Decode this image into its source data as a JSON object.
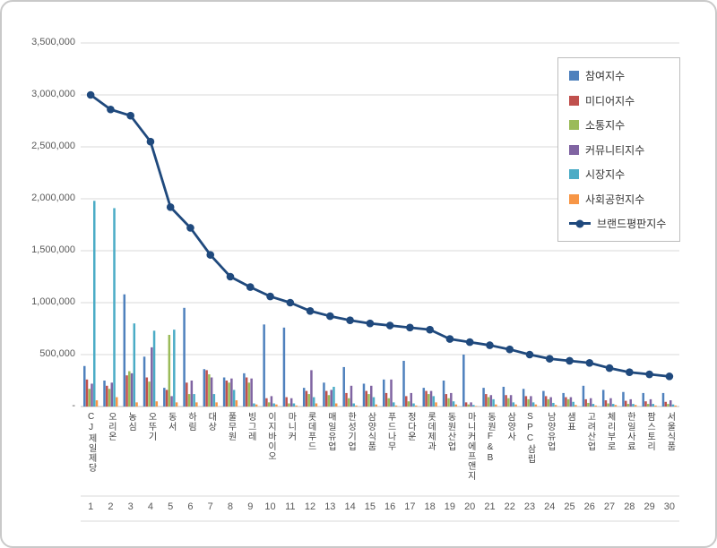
{
  "chart": {
    "accent_line_color": "#1F497D",
    "gridline_color": "#D9D9D9",
    "axis_line_color": "#BFBFBF",
    "background_color": "#FFFFFF"
  },
  "chart_data": {
    "type": "bar",
    "subtype": "grouped-bars-with-line-overlay",
    "title": "",
    "xlabel": "",
    "ylabel": "",
    "ylim": [
      0,
      3500000
    ],
    "ytick_interval": 500000,
    "ytick_labels": [
      "-",
      "500,000",
      "1,000,000",
      "1,500,000",
      "2,000,000",
      "2,500,000",
      "3,000,000",
      "3,500,000"
    ],
    "grid": true,
    "legend_position": "top-right",
    "categories": [
      "CJ제일제당",
      "오리온",
      "농심",
      "오뚜기",
      "동서",
      "하림",
      "대상",
      "풀무원",
      "빙그레",
      "이지바이오",
      "마니커",
      "롯데푸드",
      "매일유업",
      "한성기업",
      "삼양식품",
      "푸드나무",
      "정다운",
      "롯데제과",
      "동원산업",
      "마니커에프앤지",
      "동원F&B",
      "삼양사",
      "SPC삼립",
      "남양유업",
      "샘표",
      "고려산업",
      "체리부로",
      "한일사료",
      "팜스토리",
      "서울식품"
    ],
    "rank_labels": [
      "1",
      "2",
      "3",
      "4",
      "5",
      "6",
      "7",
      "8",
      "9",
      "10",
      "11",
      "12",
      "13",
      "14",
      "15",
      "16",
      "17",
      "18",
      "19",
      "20",
      "21",
      "22",
      "23",
      "24",
      "25",
      "26",
      "27",
      "28",
      "29",
      "30"
    ],
    "series": [
      {
        "name": "참여지수",
        "type": "bar",
        "color": "#4F81BD",
        "values": [
          390000,
          250000,
          1080000,
          480000,
          180000,
          950000,
          360000,
          280000,
          320000,
          790000,
          760000,
          180000,
          230000,
          380000,
          220000,
          260000,
          440000,
          180000,
          250000,
          500000,
          180000,
          190000,
          170000,
          150000,
          130000,
          200000,
          160000,
          140000,
          130000,
          130000
        ]
      },
      {
        "name": "미디어지수",
        "type": "bar",
        "color": "#C0504D",
        "values": [
          260000,
          200000,
          300000,
          280000,
          160000,
          230000,
          350000,
          250000,
          280000,
          80000,
          90000,
          150000,
          150000,
          130000,
          150000,
          130000,
          100000,
          150000,
          120000,
          40000,
          120000,
          110000,
          100000,
          100000,
          90000,
          70000,
          60000,
          55000,
          50000,
          45000
        ]
      },
      {
        "name": "소통지수",
        "type": "bar",
        "color": "#9BBB59",
        "values": [
          170000,
          170000,
          340000,
          240000,
          690000,
          120000,
          310000,
          230000,
          230000,
          40000,
          30000,
          120000,
          110000,
          80000,
          120000,
          80000,
          50000,
          120000,
          80000,
          20000,
          90000,
          80000,
          70000,
          70000,
          70000,
          35000,
          30000,
          25000,
          25000,
          25000
        ]
      },
      {
        "name": "커뮤니티지수",
        "type": "bar",
        "color": "#8064A2",
        "values": [
          220000,
          230000,
          320000,
          570000,
          100000,
          250000,
          280000,
          270000,
          270000,
          100000,
          80000,
          350000,
          160000,
          200000,
          200000,
          260000,
          130000,
          150000,
          130000,
          40000,
          110000,
          110000,
          100000,
          90000,
          90000,
          80000,
          80000,
          70000,
          70000,
          60000
        ]
      },
      {
        "name": "시장지수",
        "type": "bar",
        "color": "#4BACC6",
        "values": [
          1980000,
          1910000,
          800000,
          730000,
          740000,
          120000,
          120000,
          160000,
          30000,
          30000,
          30000,
          90000,
          190000,
          30000,
          90000,
          40000,
          30000,
          100000,
          50000,
          15000,
          70000,
          40000,
          40000,
          35000,
          45000,
          25000,
          25000,
          25000,
          25000,
          20000
        ]
      },
      {
        "name": "사회공헌지수",
        "type": "bar",
        "color": "#F79646",
        "values": [
          60000,
          90000,
          40000,
          50000,
          40000,
          40000,
          40000,
          60000,
          20000,
          20000,
          10000,
          30000,
          30000,
          10000,
          20000,
          10000,
          10000,
          40000,
          20000,
          5000,
          20000,
          20000,
          20000,
          15000,
          15000,
          10000,
          15000,
          15000,
          10000,
          10000
        ]
      },
      {
        "name": "브랜드평판지수",
        "type": "line",
        "color": "#1F497D",
        "values": [
          3000000,
          2860000,
          2800000,
          2550000,
          1920000,
          1720000,
          1460000,
          1250000,
          1150000,
          1060000,
          1000000,
          920000,
          870000,
          830000,
          800000,
          780000,
          760000,
          740000,
          650000,
          620000,
          590000,
          550000,
          500000,
          460000,
          440000,
          420000,
          370000,
          330000,
          310000,
          290000
        ]
      }
    ]
  }
}
